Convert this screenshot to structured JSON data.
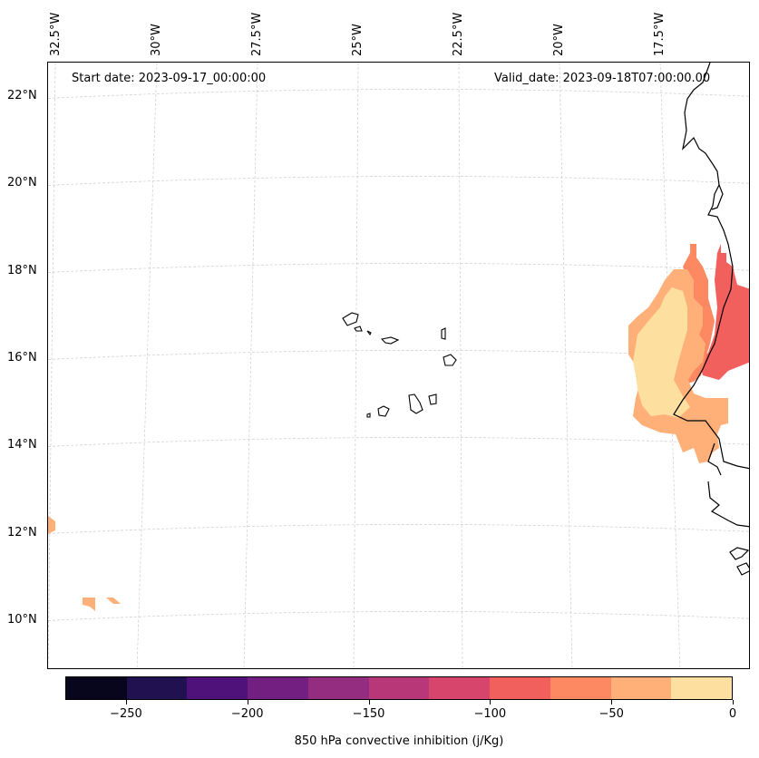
{
  "map": {
    "projection_note": "",
    "start_date_label": "Start date: 2023-09-17_00:00:00",
    "valid_date_label": "Valid_date: 2023-09-18T07:00:00.00",
    "longitude_labels": [
      "32.5°W",
      "30°W",
      "27.5°W",
      "25°W",
      "22.5°W",
      "20°W",
      "17.5°W"
    ],
    "latitude_labels": [
      "22°N",
      "20°N",
      "18°N",
      "16°N",
      "14°N",
      "12°N",
      "10°N"
    ],
    "features": {
      "coastline": "West Africa coast (Mauritania, Senegal, Gambia, Guinea-Bissau)",
      "islands": "Cape Verde islands"
    }
  },
  "colorbar": {
    "label": "850 hPa convective inhibition (j/Kg)",
    "min": -275,
    "max": 0,
    "step": 25,
    "tick_labels": [
      "−250",
      "−200",
      "−150",
      "−100",
      "−50",
      "0"
    ],
    "tick_values": [
      -250,
      -200,
      -150,
      -100,
      -50,
      0
    ],
    "colors": [
      "#07061c",
      "#221150",
      "#4f127b",
      "#721f81",
      "#942c80",
      "#b73779",
      "#d8456c",
      "#f1605d",
      "#fc8961",
      "#feb078",
      "#fde0a0"
    ]
  }
}
